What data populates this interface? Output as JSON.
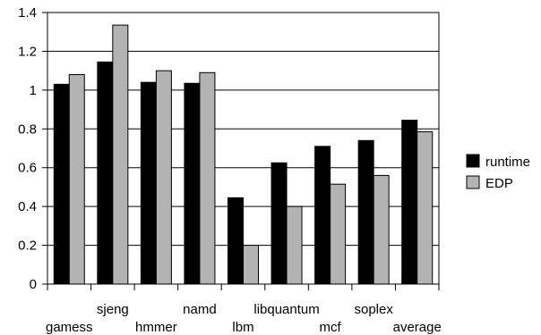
{
  "chart_data": {
    "type": "bar",
    "categories": [
      "gamess",
      "sjeng",
      "hmmer",
      "namd",
      "lbm",
      "libquantum",
      "mcf",
      "soplex",
      "average"
    ],
    "series": [
      {
        "name": "runtime",
        "values": [
          1.03,
          1.145,
          1.04,
          1.035,
          0.445,
          0.625,
          0.71,
          0.74,
          0.845
        ],
        "color": "#000000"
      },
      {
        "name": "EDP",
        "values": [
          1.08,
          1.335,
          1.1,
          1.09,
          0.2,
          0.4,
          0.515,
          0.56,
          0.785
        ],
        "color": "#b3b3b3"
      }
    ],
    "ylim": [
      0,
      1.4
    ],
    "yticks": [
      "0",
      "0.2",
      "0.4",
      "0.6",
      "0.8",
      "1",
      "1.2",
      "1.4"
    ],
    "grid": true,
    "legend": "right"
  }
}
